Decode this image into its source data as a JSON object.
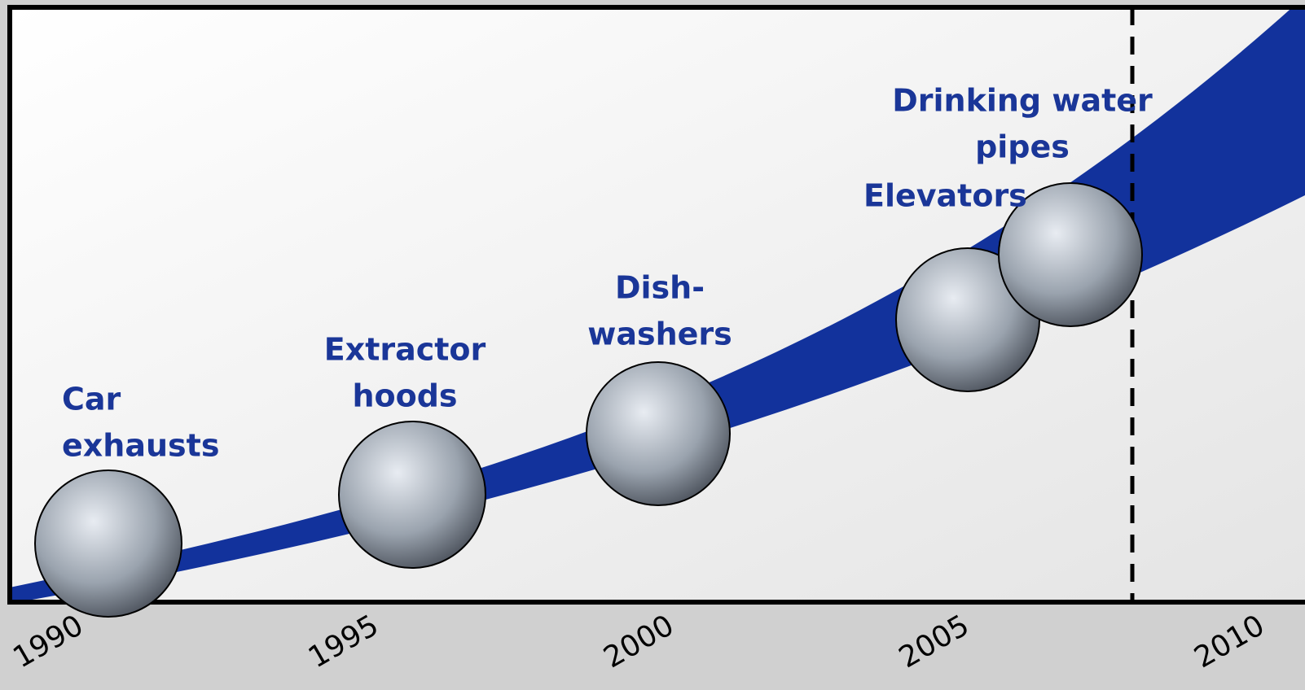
{
  "axis": {
    "ticks": [
      "1990",
      "1995",
      "2000",
      "2005",
      "2010"
    ]
  },
  "milestones": [
    {
      "lines": [
        "Car",
        "exhausts"
      ]
    },
    {
      "lines": [
        "Extractor",
        "hoods"
      ]
    },
    {
      "lines": [
        "Dish-",
        "washers"
      ]
    },
    {
      "lines": [
        "Elevators"
      ]
    },
    {
      "lines": [
        "Drinking water",
        "pipes"
      ]
    }
  ]
}
